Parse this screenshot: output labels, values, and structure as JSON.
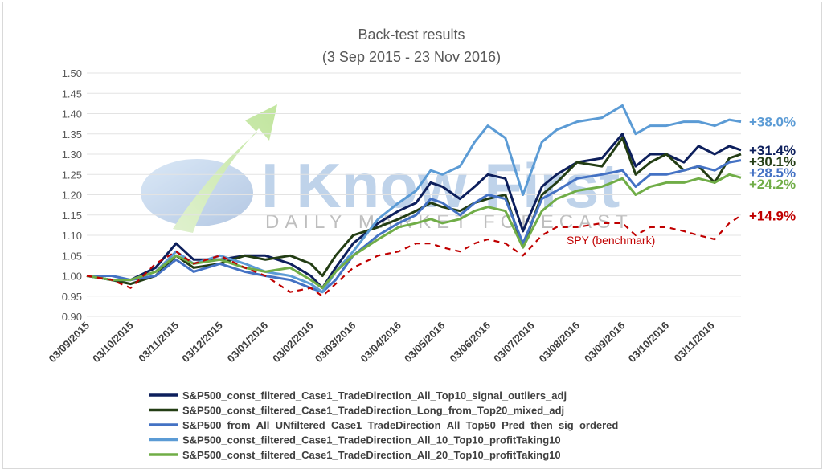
{
  "watermark": {
    "brand": "I Know First",
    "tagline": "DAILY MARKET FORECAST"
  },
  "chart_data": {
    "type": "line",
    "title": "Back-test results",
    "subtitle": "(3 Sep 2015 - 23 Nov 2016)",
    "xlabel": "",
    "ylabel": "",
    "ylim": [
      0.9,
      1.5
    ],
    "yticks": [
      "0.90",
      "0.95",
      "1.00",
      "1.05",
      "1.10",
      "1.15",
      "1.20",
      "1.25",
      "1.30",
      "1.35",
      "1.40",
      "1.45",
      "1.50"
    ],
    "xlim": [
      "2015-09-03",
      "2016-11-23"
    ],
    "xticks": [
      {
        "date": "2015-09-03",
        "label": "03/09/2015"
      },
      {
        "date": "2015-10-03",
        "label": "03/10/2015"
      },
      {
        "date": "2015-11-03",
        "label": "03/11/2015"
      },
      {
        "date": "2015-12-03",
        "label": "03/12/2015"
      },
      {
        "date": "2016-01-03",
        "label": "03/01/2016"
      },
      {
        "date": "2016-02-03",
        "label": "03/02/2016"
      },
      {
        "date": "2016-03-03",
        "label": "03/03/2016"
      },
      {
        "date": "2016-04-03",
        "label": "03/04/2016"
      },
      {
        "date": "2016-05-03",
        "label": "03/05/2016"
      },
      {
        "date": "2016-06-03",
        "label": "03/06/2016"
      },
      {
        "date": "2016-07-03",
        "label": "03/07/2016"
      },
      {
        "date": "2016-08-03",
        "label": "03/08/2016"
      },
      {
        "date": "2016-09-03",
        "label": "03/09/2016"
      },
      {
        "date": "2016-10-03",
        "label": "03/10/2016"
      },
      {
        "date": "2016-11-03",
        "label": "03/11/2016"
      }
    ],
    "grid": true,
    "legend_position": "bottom",
    "series": [
      {
        "name": "S&P500_const_filtered_Case1_TradeDirection_All_Top10_signal_outliers_adj",
        "color": "#0d1f5c",
        "dash": false,
        "end_label": "+31.4%",
        "points": [
          [
            "2015-09-03",
            1.0
          ],
          [
            "2015-09-20",
            0.99
          ],
          [
            "2015-10-03",
            0.99
          ],
          [
            "2015-10-20",
            1.02
          ],
          [
            "2015-11-03",
            1.08
          ],
          [
            "2015-11-15",
            1.04
          ],
          [
            "2015-12-03",
            1.04
          ],
          [
            "2015-12-20",
            1.05
          ],
          [
            "2016-01-03",
            1.05
          ],
          [
            "2016-01-20",
            1.03
          ],
          [
            "2016-02-03",
            1.0
          ],
          [
            "2016-02-11",
            0.97
          ],
          [
            "2016-02-20",
            1.02
          ],
          [
            "2016-03-03",
            1.08
          ],
          [
            "2016-03-20",
            1.13
          ],
          [
            "2016-04-03",
            1.16
          ],
          [
            "2016-04-15",
            1.18
          ],
          [
            "2016-04-25",
            1.23
          ],
          [
            "2016-05-03",
            1.22
          ],
          [
            "2016-05-15",
            1.19
          ],
          [
            "2016-05-25",
            1.22
          ],
          [
            "2016-06-03",
            1.25
          ],
          [
            "2016-06-15",
            1.24
          ],
          [
            "2016-06-27",
            1.11
          ],
          [
            "2016-07-10",
            1.22
          ],
          [
            "2016-07-20",
            1.25
          ],
          [
            "2016-08-03",
            1.28
          ],
          [
            "2016-08-20",
            1.29
          ],
          [
            "2016-09-03",
            1.35
          ],
          [
            "2016-09-12",
            1.27
          ],
          [
            "2016-09-22",
            1.3
          ],
          [
            "2016-10-03",
            1.3
          ],
          [
            "2016-10-15",
            1.28
          ],
          [
            "2016-10-25",
            1.32
          ],
          [
            "2016-11-05",
            1.3
          ],
          [
            "2016-11-15",
            1.32
          ],
          [
            "2016-11-23",
            1.31
          ]
        ]
      },
      {
        "name": "S&P500_const_filtered_Case1_TradeDirection_Long_from_Top20_mixed_adj",
        "color": "#233d14",
        "dash": false,
        "end_label": "+30.1%",
        "points": [
          [
            "2015-09-03",
            1.0
          ],
          [
            "2015-09-20",
            0.99
          ],
          [
            "2015-10-03",
            0.98
          ],
          [
            "2015-10-20",
            1.0
          ],
          [
            "2015-11-03",
            1.05
          ],
          [
            "2015-11-15",
            1.02
          ],
          [
            "2015-12-03",
            1.03
          ],
          [
            "2015-12-20",
            1.05
          ],
          [
            "2016-01-03",
            1.04
          ],
          [
            "2016-01-20",
            1.05
          ],
          [
            "2016-02-03",
            1.03
          ],
          [
            "2016-02-11",
            1.0
          ],
          [
            "2016-02-20",
            1.05
          ],
          [
            "2016-03-03",
            1.1
          ],
          [
            "2016-03-20",
            1.12
          ],
          [
            "2016-04-03",
            1.14
          ],
          [
            "2016-04-15",
            1.16
          ],
          [
            "2016-04-25",
            1.18
          ],
          [
            "2016-05-03",
            1.17
          ],
          [
            "2016-05-15",
            1.16
          ],
          [
            "2016-05-25",
            1.18
          ],
          [
            "2016-06-03",
            1.19
          ],
          [
            "2016-06-15",
            1.2
          ],
          [
            "2016-06-27",
            1.07
          ],
          [
            "2016-07-10",
            1.2
          ],
          [
            "2016-07-20",
            1.23
          ],
          [
            "2016-08-03",
            1.28
          ],
          [
            "2016-08-20",
            1.27
          ],
          [
            "2016-09-03",
            1.34
          ],
          [
            "2016-09-12",
            1.25
          ],
          [
            "2016-09-22",
            1.28
          ],
          [
            "2016-10-03",
            1.3
          ],
          [
            "2016-10-15",
            1.26
          ],
          [
            "2016-10-25",
            1.27
          ],
          [
            "2016-11-05",
            1.23
          ],
          [
            "2016-11-15",
            1.29
          ],
          [
            "2016-11-23",
            1.3
          ]
        ]
      },
      {
        "name": "S&P500_from_All_UNfiltered_Case1_TradeDirection_All_Top50_Pred_then_sig_ordered",
        "color": "#4472c4",
        "dash": false,
        "end_label": "+28.5%",
        "points": [
          [
            "2015-09-03",
            1.0
          ],
          [
            "2015-09-20",
            1.0
          ],
          [
            "2015-10-03",
            0.99
          ],
          [
            "2015-10-20",
            1.0
          ],
          [
            "2015-11-03",
            1.04
          ],
          [
            "2015-11-15",
            1.01
          ],
          [
            "2015-12-03",
            1.03
          ],
          [
            "2015-12-20",
            1.01
          ],
          [
            "2016-01-03",
            1.0
          ],
          [
            "2016-01-20",
            0.99
          ],
          [
            "2016-02-03",
            0.97
          ],
          [
            "2016-02-11",
            0.96
          ],
          [
            "2016-02-20",
            0.99
          ],
          [
            "2016-03-03",
            1.05
          ],
          [
            "2016-03-20",
            1.1
          ],
          [
            "2016-04-03",
            1.13
          ],
          [
            "2016-04-15",
            1.15
          ],
          [
            "2016-04-25",
            1.19
          ],
          [
            "2016-05-03",
            1.18
          ],
          [
            "2016-05-15",
            1.15
          ],
          [
            "2016-05-25",
            1.18
          ],
          [
            "2016-06-03",
            1.2
          ],
          [
            "2016-06-15",
            1.19
          ],
          [
            "2016-06-27",
            1.08
          ],
          [
            "2016-07-10",
            1.19
          ],
          [
            "2016-07-20",
            1.21
          ],
          [
            "2016-08-03",
            1.24
          ],
          [
            "2016-08-20",
            1.25
          ],
          [
            "2016-09-03",
            1.26
          ],
          [
            "2016-09-12",
            1.22
          ],
          [
            "2016-09-22",
            1.25
          ],
          [
            "2016-10-03",
            1.25
          ],
          [
            "2016-10-15",
            1.26
          ],
          [
            "2016-10-25",
            1.27
          ],
          [
            "2016-11-05",
            1.26
          ],
          [
            "2016-11-15",
            1.28
          ],
          [
            "2016-11-23",
            1.285
          ]
        ]
      },
      {
        "name": "S&P500_const_filtered_Case1_TradeDirection_All_10_Top10_profitTaking10",
        "color": "#5b9bd5",
        "dash": false,
        "end_label": "+38.0%",
        "points": [
          [
            "2015-09-03",
            1.0
          ],
          [
            "2015-09-20",
            0.99
          ],
          [
            "2015-10-03",
            0.99
          ],
          [
            "2015-10-20",
            1.01
          ],
          [
            "2015-11-03",
            1.06
          ],
          [
            "2015-11-15",
            1.03
          ],
          [
            "2015-12-03",
            1.05
          ],
          [
            "2015-12-20",
            1.03
          ],
          [
            "2016-01-03",
            1.01
          ],
          [
            "2016-01-20",
            1.0
          ],
          [
            "2016-02-03",
            0.98
          ],
          [
            "2016-02-11",
            0.96
          ],
          [
            "2016-02-20",
            1.01
          ],
          [
            "2016-03-03",
            1.06
          ],
          [
            "2016-03-20",
            1.14
          ],
          [
            "2016-04-03",
            1.18
          ],
          [
            "2016-04-15",
            1.21
          ],
          [
            "2016-04-25",
            1.26
          ],
          [
            "2016-05-03",
            1.25
          ],
          [
            "2016-05-15",
            1.27
          ],
          [
            "2016-05-25",
            1.33
          ],
          [
            "2016-06-03",
            1.37
          ],
          [
            "2016-06-15",
            1.34
          ],
          [
            "2016-06-27",
            1.2
          ],
          [
            "2016-07-10",
            1.33
          ],
          [
            "2016-07-20",
            1.36
          ],
          [
            "2016-08-03",
            1.38
          ],
          [
            "2016-08-20",
            1.39
          ],
          [
            "2016-09-03",
            1.42
          ],
          [
            "2016-09-12",
            1.35
          ],
          [
            "2016-09-22",
            1.37
          ],
          [
            "2016-10-03",
            1.37
          ],
          [
            "2016-10-15",
            1.38
          ],
          [
            "2016-10-25",
            1.38
          ],
          [
            "2016-11-05",
            1.37
          ],
          [
            "2016-11-15",
            1.385
          ],
          [
            "2016-11-23",
            1.38
          ]
        ]
      },
      {
        "name": "S&P500_const_filtered_Case1_TradeDirection_All_20_Top10_profitTaking10",
        "color": "#70ad47",
        "dash": false,
        "end_label": "+24.2%",
        "points": [
          [
            "2015-09-03",
            1.0
          ],
          [
            "2015-09-20",
            0.99
          ],
          [
            "2015-10-03",
            0.99
          ],
          [
            "2015-10-20",
            1.01
          ],
          [
            "2015-11-03",
            1.05
          ],
          [
            "2015-11-15",
            1.03
          ],
          [
            "2015-12-03",
            1.04
          ],
          [
            "2015-12-20",
            1.02
          ],
          [
            "2016-01-03",
            1.01
          ],
          [
            "2016-01-20",
            1.02
          ],
          [
            "2016-02-03",
            0.99
          ],
          [
            "2016-02-11",
            0.97
          ],
          [
            "2016-02-20",
            1.01
          ],
          [
            "2016-03-03",
            1.05
          ],
          [
            "2016-03-20",
            1.09
          ],
          [
            "2016-04-03",
            1.12
          ],
          [
            "2016-04-15",
            1.13
          ],
          [
            "2016-04-25",
            1.14
          ],
          [
            "2016-05-03",
            1.13
          ],
          [
            "2016-05-15",
            1.14
          ],
          [
            "2016-05-25",
            1.16
          ],
          [
            "2016-06-03",
            1.17
          ],
          [
            "2016-06-15",
            1.16
          ],
          [
            "2016-06-27",
            1.07
          ],
          [
            "2016-07-10",
            1.16
          ],
          [
            "2016-07-20",
            1.19
          ],
          [
            "2016-08-03",
            1.21
          ],
          [
            "2016-08-20",
            1.22
          ],
          [
            "2016-09-03",
            1.24
          ],
          [
            "2016-09-12",
            1.2
          ],
          [
            "2016-09-22",
            1.22
          ],
          [
            "2016-10-03",
            1.23
          ],
          [
            "2016-10-15",
            1.23
          ],
          [
            "2016-10-25",
            1.24
          ],
          [
            "2016-11-05",
            1.23
          ],
          [
            "2016-11-15",
            1.25
          ],
          [
            "2016-11-23",
            1.242
          ]
        ]
      },
      {
        "name": "SPY (benchmark)",
        "color": "#c00000",
        "dash": true,
        "in_legend": false,
        "end_label": "+14.9%",
        "points": [
          [
            "2015-09-03",
            1.0
          ],
          [
            "2015-09-20",
            0.99
          ],
          [
            "2015-10-03",
            0.97
          ],
          [
            "2015-10-20",
            1.03
          ],
          [
            "2015-11-03",
            1.06
          ],
          [
            "2015-11-15",
            1.03
          ],
          [
            "2015-12-03",
            1.05
          ],
          [
            "2015-12-20",
            1.02
          ],
          [
            "2016-01-03",
            1.0
          ],
          [
            "2016-01-20",
            0.96
          ],
          [
            "2016-02-03",
            0.97
          ],
          [
            "2016-02-11",
            0.95
          ],
          [
            "2016-02-20",
            0.98
          ],
          [
            "2016-03-03",
            1.02
          ],
          [
            "2016-03-20",
            1.05
          ],
          [
            "2016-04-03",
            1.06
          ],
          [
            "2016-04-15",
            1.08
          ],
          [
            "2016-04-25",
            1.08
          ],
          [
            "2016-05-03",
            1.07
          ],
          [
            "2016-05-15",
            1.06
          ],
          [
            "2016-05-25",
            1.08
          ],
          [
            "2016-06-03",
            1.09
          ],
          [
            "2016-06-15",
            1.08
          ],
          [
            "2016-06-27",
            1.05
          ],
          [
            "2016-07-10",
            1.1
          ],
          [
            "2016-07-20",
            1.12
          ],
          [
            "2016-08-03",
            1.12
          ],
          [
            "2016-08-20",
            1.13
          ],
          [
            "2016-09-03",
            1.13
          ],
          [
            "2016-09-12",
            1.1
          ],
          [
            "2016-09-22",
            1.12
          ],
          [
            "2016-10-03",
            1.12
          ],
          [
            "2016-10-15",
            1.11
          ],
          [
            "2016-10-25",
            1.1
          ],
          [
            "2016-11-05",
            1.09
          ],
          [
            "2016-11-15",
            1.13
          ],
          [
            "2016-11-23",
            1.149
          ]
        ]
      }
    ],
    "annotations": [
      {
        "text": "SPY (benchmark)",
        "color": "#c00000"
      }
    ]
  }
}
